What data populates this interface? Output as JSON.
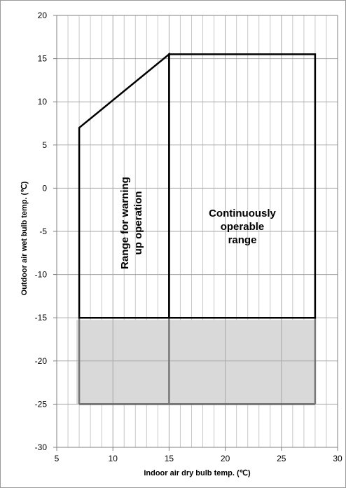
{
  "chart_data": {
    "type": "area",
    "title": "",
    "xlabel": "Indoor air dry bulb temp.  (℃)",
    "ylabel": "Outdoor air wet bulb temp. (℃)",
    "xlim": [
      5,
      30
    ],
    "ylim": [
      -30,
      20
    ],
    "x_ticks": [
      5,
      10,
      15,
      20,
      25,
      30
    ],
    "y_ticks": [
      20,
      15,
      10,
      5,
      0,
      -5,
      -10,
      -15,
      -20,
      -25,
      -30
    ],
    "x_minor_step": 1,
    "y_minor_step": 1,
    "grid": true,
    "regions": [
      {
        "name": "warming-up",
        "label_lines": [
          "Range for warning",
          "up operation"
        ],
        "polygon": [
          [
            7,
            -15
          ],
          [
            7,
            7
          ],
          [
            15,
            15.5
          ],
          [
            15,
            -15
          ]
        ]
      },
      {
        "name": "continuous",
        "label_lines": [
          "Continuously",
          "operable",
          "range"
        ],
        "polygon": [
          [
            15,
            -15
          ],
          [
            15,
            15.5
          ],
          [
            28,
            15.5
          ],
          [
            28,
            -15
          ]
        ]
      }
    ],
    "shaded_band": {
      "x": [
        7,
        28
      ],
      "y": [
        -25,
        -15
      ],
      "color": "#d9d9d9",
      "dividers_x": [
        15
      ]
    }
  }
}
